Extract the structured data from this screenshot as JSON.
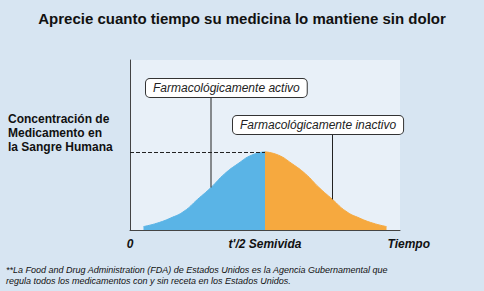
{
  "chart_data": {
    "type": "area",
    "title": "Aprecie cuanto tiempo su medicina lo mantiene sin dolor",
    "ylabel": "Concentración de\nMedicamento en\nla Sangre Humana",
    "xlabel": "Tiempo",
    "x": [
      0.5,
      1,
      1.5,
      2,
      2.5,
      3,
      3.5,
      4,
      4.5,
      5,
      5.5,
      6,
      6.5,
      7,
      7.5,
      8,
      8.5,
      9,
      9.5
    ],
    "series": [
      {
        "name": "Farmacológicamente activo",
        "color": "#5ab4e6",
        "values": [
          0.2,
          0.4,
          0.7,
          1.1,
          1.8,
          2.5,
          3.3,
          3.9,
          4.4,
          4.6,
          null,
          null,
          null,
          null,
          null,
          null,
          null,
          null,
          null
        ]
      },
      {
        "name": "Farmacológicamente inactivo",
        "color": "#f6a93f",
        "values": [
          null,
          null,
          null,
          null,
          null,
          null,
          null,
          null,
          null,
          4.6,
          4.4,
          3.9,
          3.3,
          2.5,
          1.8,
          1.1,
          0.7,
          0.4,
          0.2
        ]
      }
    ],
    "xlim": [
      0,
      10
    ],
    "xticks": [
      0,
      {
        "value": 5,
        "label": "t'/2 Semivida"
      }
    ],
    "ylim": [
      0,
      10
    ],
    "yticks": [],
    "tick_labels": "x",
    "grid": false,
    "footnote": "**La Food and Drug Administration (FDA) de Estados Unidos es la Agencia Gubernamental que\nregula todos los medicamentos con y sin receta en los Estados Unidos."
  }
}
